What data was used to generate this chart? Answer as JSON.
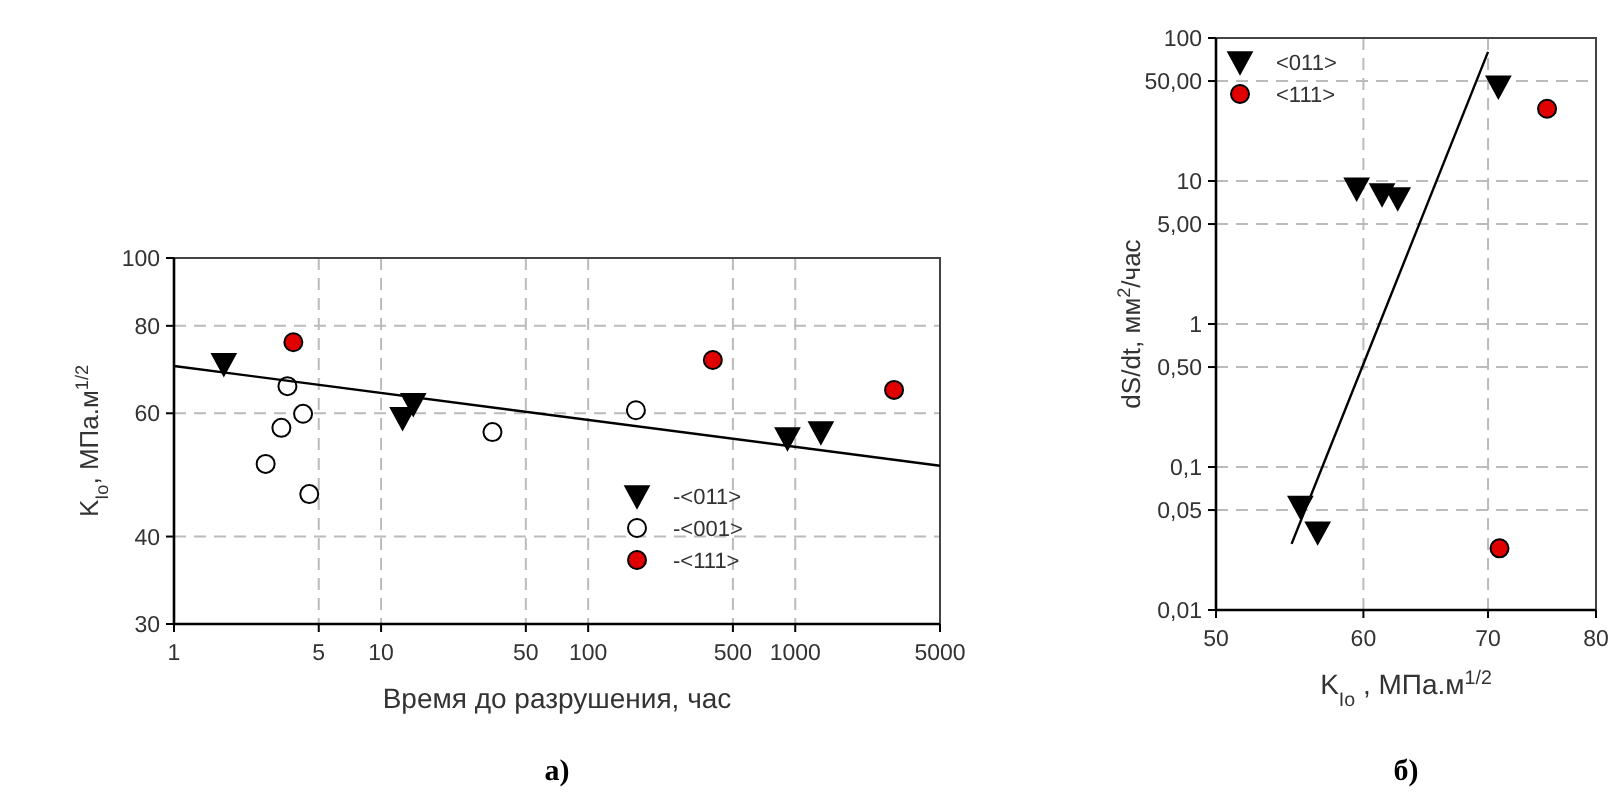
{
  "chart_data": [
    {
      "type": "scatter",
      "title": "а)",
      "xlabel": "Время до разрушения, час",
      "ylabel": "K$_{Io}$, МПа.м$^{1/2}$",
      "log": "xy",
      "xlim": [
        1,
        5000
      ],
      "xticks": [
        1,
        5,
        10,
        50,
        100,
        500,
        1000,
        5000
      ],
      "ylim": [
        30,
        100
      ],
      "yticks": [
        30,
        40,
        60,
        80,
        100
      ],
      "grid": true,
      "legend": "bottom",
      "series": [
        {
          "name": "-<011>",
          "color": "#000000",
          "marker": "triangle",
          "x": [
            1.74,
            12.7,
            14.3,
            917,
            1330
          ],
          "values": [
            70.6,
            59.1,
            61.9,
            55.3,
            56.4
          ]
        },
        {
          "name": "-<001>",
          "color": "#ffffff",
          "marker": "circle",
          "x": [
            3.53,
            3.3,
            4.2,
            2.77,
            4.5,
            34.5,
            170
          ],
          "values": [
            65.6,
            57.2,
            59.9,
            50.8,
            46,
            56.4,
            60.6
          ]
        },
        {
          "name": "-<111>",
          "color": "#e00000",
          "marker": "circle",
          "x": [
            3.77,
            400,
            3000
          ],
          "values": [
            75.8,
            71.5,
            64.8
          ]
        },
        {
          "type": "line",
          "color": "#000000",
          "marker": "none",
          "x": [
            1,
            5000
          ],
          "values": [
            70.1,
            50.5
          ]
        }
      ]
    },
    {
      "type": "scatter",
      "title": "б)",
      "xlabel": "K$_{Io}$ ,  МПа.м$^{1/2}$",
      "ylabel": "dS/dt, мм$^{2}$/час",
      "log": "xy",
      "xlim": [
        50,
        80
      ],
      "xticks": [
        50,
        60,
        70,
        80
      ],
      "ylim": [
        0.01,
        100
      ],
      "yticks": [
        {
          "value": 0.01,
          "label": "0,01"
        },
        {
          "value": 0.05,
          "label": "0,05"
        },
        {
          "value": 0.1,
          "label": "0,1"
        },
        {
          "value": 0.5,
          "label": "0,50"
        },
        {
          "value": 1,
          "label": "1"
        },
        {
          "value": 5,
          "label": "5,00"
        },
        {
          "value": 10,
          "label": "10"
        },
        {
          "value": 50,
          "label": "50,00"
        },
        {
          "value": 100,
          "label": "100"
        }
      ],
      "grid": true,
      "legend": "top left",
      "series": [
        {
          "name": "<011>",
          "color": "#000000",
          "marker": "triangle",
          "x": [
            70.9,
            59.5,
            61.4,
            62.6,
            55.5,
            56.7
          ],
          "values": [
            46,
            8.9,
            8.1,
            7.6,
            0.053,
            0.035
          ]
        },
        {
          "name": "<111>",
          "color": "#e00000",
          "marker": "circle",
          "x": [
            75.3,
            71
          ],
          "values": [
            32,
            0.027
          ]
        },
        {
          "type": "line",
          "color": "#000000",
          "marker": "none",
          "x": [
            54.9,
            70
          ],
          "values": [
            0.029,
            80
          ]
        }
      ]
    }
  ]
}
